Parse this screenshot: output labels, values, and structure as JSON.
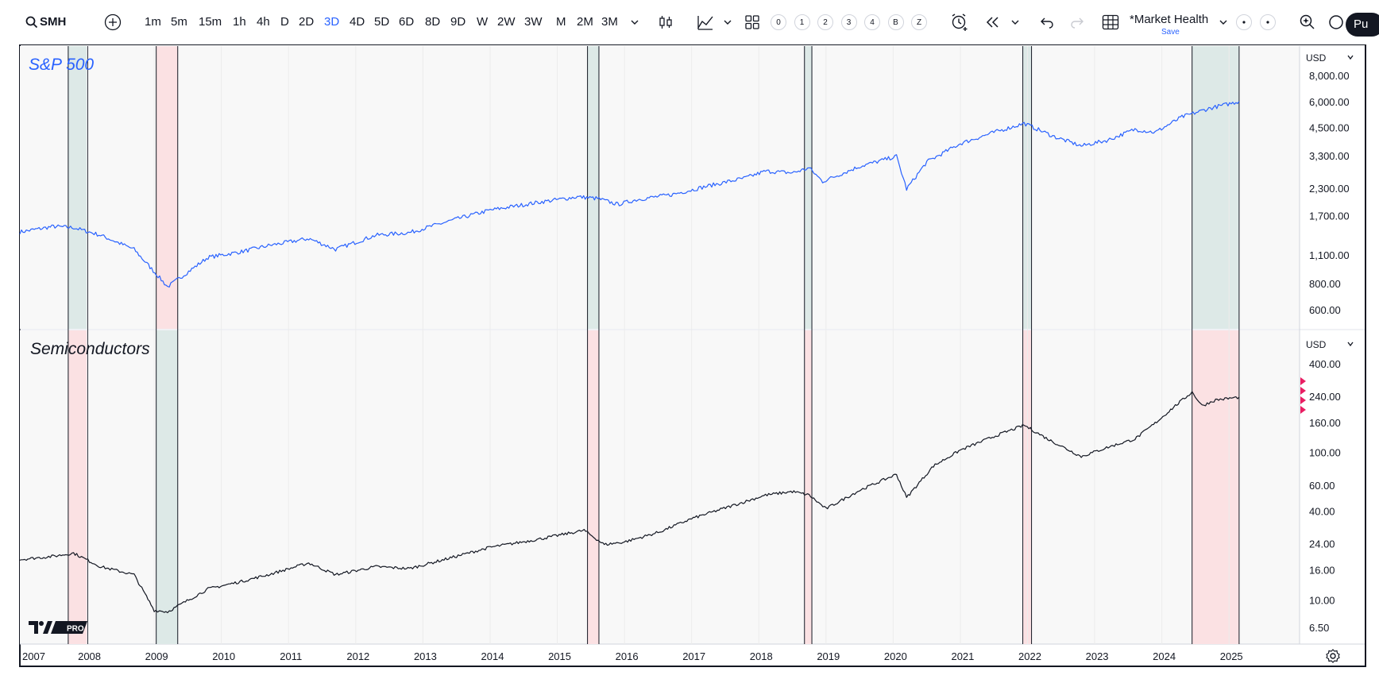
{
  "toolbar": {
    "symbol": "SMH",
    "intervals": [
      "1m",
      "5m",
      "15m",
      "1h",
      "4h",
      "D",
      "2D",
      "3D",
      "4D",
      "5D",
      "6D",
      "8D",
      "9D",
      "W",
      "2W",
      "3W",
      "M",
      "2M",
      "3M"
    ],
    "active_interval": "3D",
    "numbered_buttons": [
      "0",
      "1",
      "2",
      "3",
      "4",
      "B",
      "Z"
    ],
    "layout_name": "*Market Health",
    "layout_save": "Save",
    "publish_label": "Pu",
    "icons": [
      "search-icon",
      "add-symbol-icon",
      "interval-dropdown-icon",
      "candles-icon",
      "indicators-icon",
      "templates-icon",
      "alert-icon",
      "replay-icon",
      "undo-icon",
      "redo-icon",
      "layout-grid-icon",
      "layout-dropdown-icon",
      "more-icon",
      "quick-search-icon"
    ]
  },
  "chart_data": [
    {
      "type": "line",
      "title": "S&P 500",
      "currency": "USD",
      "scale": "log",
      "color": "#2962ff",
      "x": [
        2007.0,
        2007.5,
        2007.8,
        2008.2,
        2008.7,
        2009.2,
        2009.8,
        2010.3,
        2010.7,
        2011.3,
        2011.7,
        2012.3,
        2012.8,
        2013.5,
        2014.0,
        2014.7,
        2015.3,
        2015.6,
        2015.9,
        2016.2,
        2016.7,
        2017.3,
        2017.8,
        2018.1,
        2018.5,
        2018.75,
        2018.95,
        2019.5,
        2020.05,
        2020.2,
        2020.5,
        2021.0,
        2021.5,
        2021.95,
        2022.4,
        2022.8,
        2023.2,
        2023.6,
        2023.9,
        2024.3,
        2024.7,
        2025.15
      ],
      "y": [
        1430,
        1520,
        1500,
        1380,
        1180,
        780,
        1080,
        1150,
        1230,
        1330,
        1180,
        1380,
        1420,
        1650,
        1820,
        1980,
        2110,
        2070,
        1940,
        2050,
        2160,
        2400,
        2600,
        2800,
        2750,
        2900,
        2500,
        2950,
        3300,
        2300,
        3100,
        3800,
        4300,
        4750,
        4100,
        3700,
        3950,
        4450,
        4300,
        5100,
        5600,
        6050
      ],
      "yticks": [
        "8,000.00",
        "6,000.00",
        "4,500.00",
        "3,300.00",
        "2,300.00",
        "1,700.00",
        "1,100.00",
        "800.00",
        "600.00"
      ],
      "ytick_values": [
        8000,
        6000,
        4500,
        3300,
        2300,
        1700,
        1100,
        800,
        600
      ]
    },
    {
      "type": "line",
      "title": "Semiconductors",
      "currency": "USD",
      "scale": "log",
      "color": "#131722",
      "x": [
        2007.0,
        2007.5,
        2007.8,
        2008.2,
        2008.7,
        2009.0,
        2009.2,
        2009.8,
        2010.3,
        2010.7,
        2011.3,
        2011.7,
        2012.3,
        2012.8,
        2013.5,
        2014.0,
        2014.7,
        2015.4,
        2015.7,
        2016.0,
        2016.5,
        2017.0,
        2017.6,
        2018.1,
        2018.5,
        2018.75,
        2019.0,
        2019.5,
        2020.05,
        2020.2,
        2020.6,
        2021.0,
        2021.5,
        2021.95,
        2022.3,
        2022.8,
        2023.2,
        2023.6,
        2023.9,
        2024.2,
        2024.45,
        2024.6,
        2024.8,
        2025.15
      ],
      "y": [
        19,
        20,
        21,
        17,
        15,
        8.6,
        8.4,
        12,
        13.5,
        15,
        18,
        15,
        17,
        16.5,
        20,
        23,
        26,
        30,
        24,
        25,
        29,
        36,
        44,
        52,
        55,
        52,
        42,
        56,
        72,
        50,
        82,
        105,
        130,
        155,
        125,
        95,
        110,
        125,
        160,
        210,
        260,
        210,
        230,
        240
      ],
      "yticks": [
        "400.00",
        "240.00",
        "160.00",
        "100.00",
        "60.00",
        "40.00",
        "24.00",
        "16.00",
        "10.00",
        "6.50"
      ],
      "ytick_values": [
        400,
        240,
        160,
        100,
        60,
        40,
        24,
        16,
        10,
        6.5
      ]
    }
  ],
  "x_axis": {
    "ticks": [
      "2007",
      "2008",
      "2009",
      "2010",
      "2011",
      "2012",
      "2013",
      "2014",
      "2015",
      "2016",
      "2017",
      "2018",
      "2019",
      "2020",
      "2021",
      "2022",
      "2023",
      "2024",
      "2025"
    ],
    "range": [
      2007.0,
      2026.05
    ]
  },
  "bands": [
    {
      "start": 2007.72,
      "end": 2008.01,
      "top": "green",
      "bottom": "red"
    },
    {
      "start": 2009.03,
      "end": 2009.35,
      "top": "red",
      "bottom": "green"
    },
    {
      "start": 2015.45,
      "end": 2015.62,
      "top": "green",
      "bottom": "red"
    },
    {
      "start": 2018.68,
      "end": 2018.79,
      "top": "green",
      "bottom": "red"
    },
    {
      "start": 2021.93,
      "end": 2022.06,
      "top": "green",
      "bottom": "red"
    },
    {
      "start": 2024.45,
      "end": 2025.15,
      "top": "green",
      "bottom": "red"
    }
  ],
  "colors": {
    "band_green": "#dde9e7",
    "band_red": "#fbe1e3",
    "plot_bg": "#f8f8f8",
    "marker": "#e91e63"
  },
  "logo": "PRO"
}
